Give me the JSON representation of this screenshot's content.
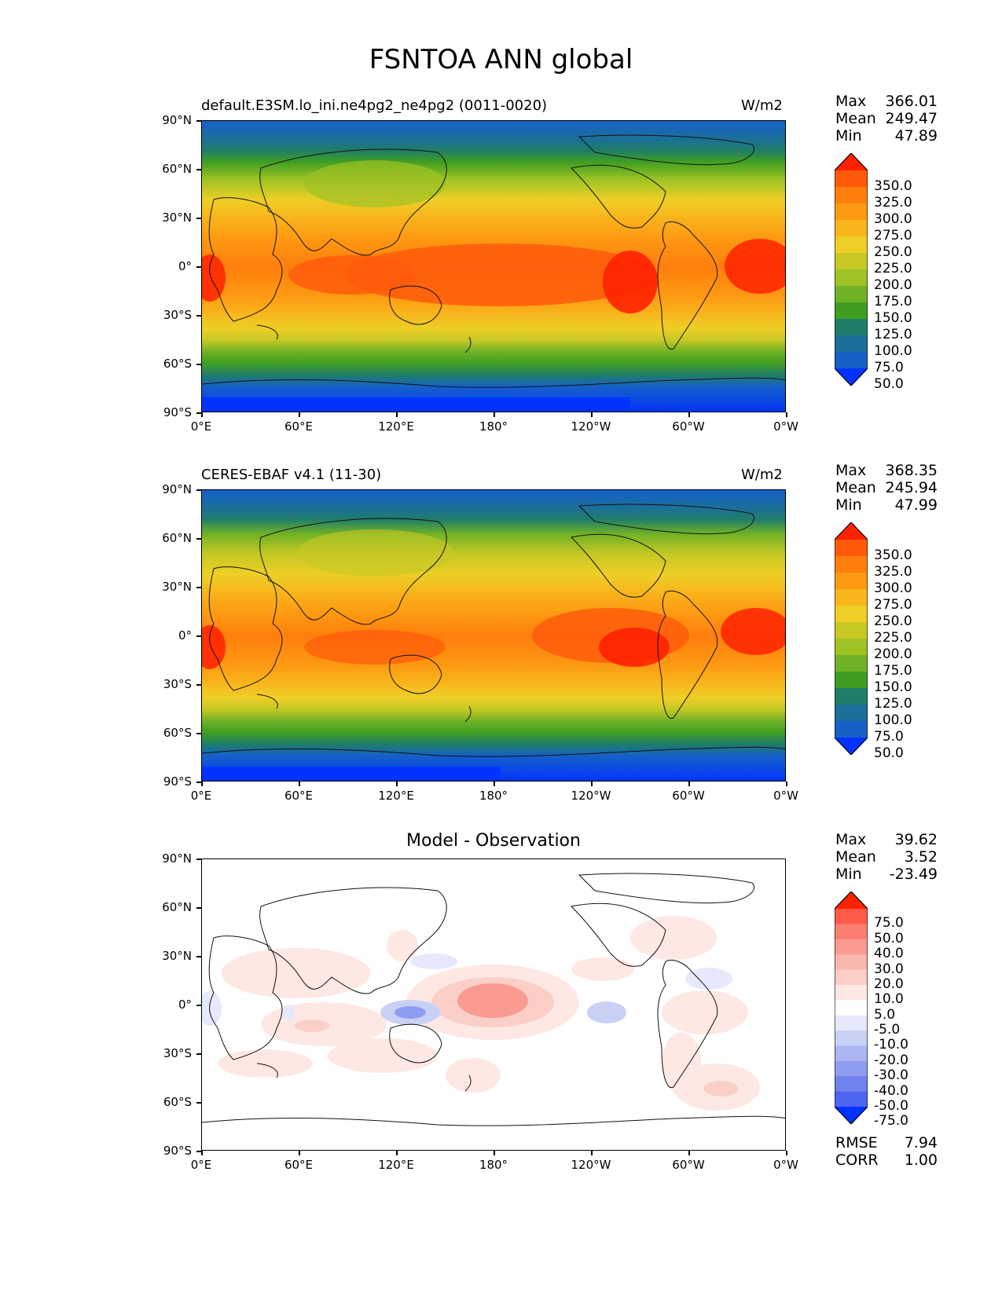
{
  "figure": {
    "title": "FSNTOA ANN global"
  },
  "axes": {
    "lat_ticks": [
      "90°N",
      "60°N",
      "30°N",
      "0°",
      "30°S",
      "60°S",
      "90°S"
    ],
    "lon_ticks": [
      "0°E",
      "60°E",
      "120°E",
      "180°",
      "120°W",
      "60°W",
      "0°W"
    ]
  },
  "panels": [
    {
      "id": "model",
      "title": "default.E3SM.lo_ini.ne4pg2_ne4pg2 (0011-0020)",
      "units": "W/m2",
      "center_title": "",
      "stats": {
        "max_label": "Max",
        "max": "366.01",
        "mean_label": "Mean",
        "mean": "249.47",
        "min_label": "Min",
        "min": "47.89"
      },
      "colorbar_labels": [
        "350.0",
        "325.0",
        "300.0",
        "275.0",
        "250.0",
        "225.0",
        "200.0",
        "175.0",
        "150.0",
        "125.0",
        "100.0",
        "75.0",
        "50.0"
      ]
    },
    {
      "id": "obs",
      "title": "CERES-EBAF v4.1 (11-30)",
      "units": "W/m2",
      "center_title": "",
      "stats": {
        "max_label": "Max",
        "max": "368.35",
        "mean_label": "Mean",
        "mean": "245.94",
        "min_label": "Min",
        "min": "47.99"
      },
      "colorbar_labels": [
        "350.0",
        "325.0",
        "300.0",
        "275.0",
        "250.0",
        "225.0",
        "200.0",
        "175.0",
        "150.0",
        "125.0",
        "100.0",
        "75.0",
        "50.0"
      ]
    },
    {
      "id": "diff",
      "title": "",
      "units": "",
      "center_title": "Model - Observation",
      "stats": {
        "max_label": "Max",
        "max": "39.62",
        "mean_label": "Mean",
        "mean": "3.52",
        "min_label": "Min",
        "min": "-23.49"
      },
      "colorbar_labels": [
        "75.0",
        "50.0",
        "40.0",
        "30.0",
        "20.0",
        "10.0",
        "5.0",
        "-5.0",
        "-10.0",
        "-20.0",
        "-30.0",
        "-40.0",
        "-50.0",
        "-75.0"
      ],
      "metrics": {
        "rmse_label": "RMSE",
        "rmse": "7.94",
        "corr_label": "CORR",
        "corr": "1.00"
      }
    }
  ],
  "colors": {
    "sequential": [
      "#ff2200",
      "#ff5a0a",
      "#ff7e0e",
      "#fd9a12",
      "#f8b51c",
      "#eecf26",
      "#c7c824",
      "#9ec224",
      "#70b226",
      "#3f9e22",
      "#1f7d6a",
      "#1b6f9a",
      "#1660c8",
      "#0033ff"
    ],
    "diverging": [
      "#ff2200",
      "#ff5a48",
      "#fb7e70",
      "#f99b90",
      "#f9b6ad",
      "#fbcfc8",
      "#fde8e4",
      "#ffffff",
      "#e5e9fb",
      "#c9d0f6",
      "#aab5f2",
      "#8e9df0",
      "#6f82ee",
      "#4c66f2",
      "#0033ff"
    ]
  }
}
